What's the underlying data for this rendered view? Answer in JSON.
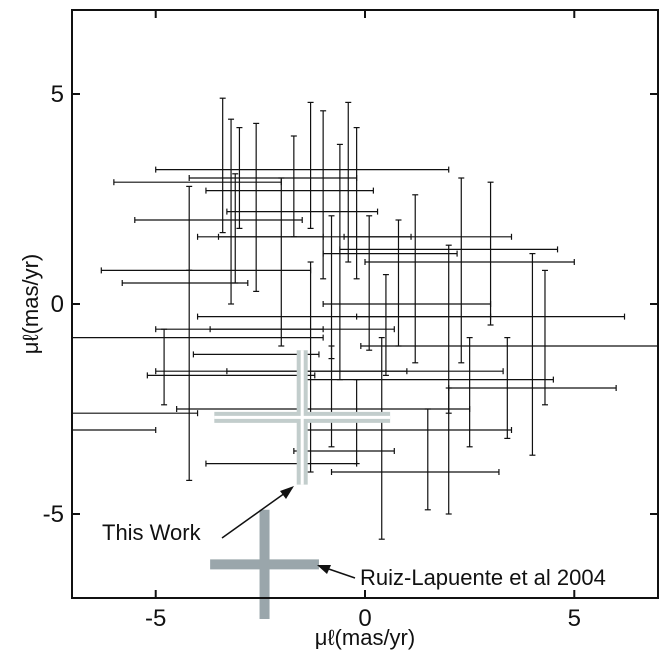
{
  "chart_data": {
    "type": "scatter",
    "title": "",
    "xlabel": "μℓ(mas/yr)",
    "ylabel": "μℓ(mas/yr)",
    "xlim": [
      -7,
      7
    ],
    "ylim": [
      -7,
      7
    ],
    "xticks": [
      -5,
      0,
      5
    ],
    "yticks": [
      -5,
      0,
      5
    ],
    "grid": false,
    "series": [
      {
        "points": [
          {
            "x": -5.5,
            "y": -2.6,
            "xerr": 1.5,
            "yerr": 0
          },
          {
            "x": -6.0,
            "y": -3.0,
            "xerr": 1.0,
            "yerr": 0
          },
          {
            "x": -4.0,
            "y": 2.9,
            "xerr": 2.0,
            "yerr": 0
          },
          {
            "x": -3.4,
            "y": 3.3,
            "xerr": 0,
            "yerr": 1.6
          },
          {
            "x": -3.0,
            "y": 3.0,
            "xerr": 0,
            "yerr": 1.2
          },
          {
            "x": -3.2,
            "y": 2.2,
            "xerr": 0,
            "yerr": 2.2
          },
          {
            "x": -2.6,
            "y": 2.3,
            "xerr": 0,
            "yerr": 2.0
          },
          {
            "x": -2.2,
            "y": 3.0,
            "xerr": 2.0,
            "yerr": 0
          },
          {
            "x": -1.7,
            "y": 2.8,
            "xerr": 0,
            "yerr": 1.2
          },
          {
            "x": -1.3,
            "y": 3.3,
            "xerr": 0,
            "yerr": 1.5
          },
          {
            "x": -1.0,
            "y": 2.6,
            "xerr": 0,
            "yerr": 2.0
          },
          {
            "x": -0.4,
            "y": 2.9,
            "xerr": 0,
            "yerr": 1.9
          },
          {
            "x": -0.2,
            "y": 2.4,
            "xerr": 0,
            "yerr": 1.8
          },
          {
            "x": -3.5,
            "y": 2.0,
            "xerr": 2.0,
            "yerr": 0
          },
          {
            "x": -1.8,
            "y": 2.7,
            "xerr": 2.0,
            "yerr": 0
          },
          {
            "x": -1.5,
            "y": 3.2,
            "xerr": 3.5,
            "yerr": 0
          },
          {
            "x": -3.1,
            "y": 1.8,
            "xerr": 0,
            "yerr": 1.3
          },
          {
            "x": -4.2,
            "y": 1.8,
            "xerr": 0,
            "yerr": 1.0
          },
          {
            "x": -4.3,
            "y": 0.5,
            "xerr": 1.5,
            "yerr": 0
          },
          {
            "x": -3.8,
            "y": 0.8,
            "xerr": 2.5,
            "yerr": 0
          },
          {
            "x": -2.5,
            "y": 1.6,
            "xerr": 1.5,
            "yerr": 0
          },
          {
            "x": -1.5,
            "y": 2.2,
            "xerr": 1.8,
            "yerr": 0
          },
          {
            "x": -2.0,
            "y": 1.0,
            "xerr": 0,
            "yerr": 2.0
          },
          {
            "x": -1.2,
            "y": 1.6,
            "xerr": 2.3,
            "yerr": 0
          },
          {
            "x": -0.6,
            "y": 1.0,
            "xerr": 0,
            "yerr": 2.8
          },
          {
            "x": -0.8,
            "y": 0.4,
            "xerr": 0,
            "yerr": 1.7
          },
          {
            "x": 0.6,
            "y": 1.2,
            "xerr": 1.6,
            "yerr": 0
          },
          {
            "x": 1.5,
            "y": 1.6,
            "xerr": 2.0,
            "yerr": 0
          },
          {
            "x": 2.0,
            "y": 1.3,
            "xerr": 2.6,
            "yerr": 0
          },
          {
            "x": 2.5,
            "y": 1.0,
            "xerr": 2.5,
            "yerr": 0
          },
          {
            "x": 3.0,
            "y": 1.2,
            "xerr": 0,
            "yerr": 1.7
          },
          {
            "x": 2.3,
            "y": 0.8,
            "xerr": 0,
            "yerr": 2.2
          },
          {
            "x": 1.2,
            "y": 0.6,
            "xerr": 0,
            "yerr": 2.0
          },
          {
            "x": 0.8,
            "y": 0.5,
            "xerr": 0,
            "yerr": 1.5
          },
          {
            "x": 0.1,
            "y": 0.5,
            "xerr": 0,
            "yerr": 1.6
          },
          {
            "x": 3.5,
            "y": -1.0,
            "xerr": 3.6,
            "yerr": 0
          },
          {
            "x": 4.0,
            "y": -1.2,
            "xerr": 0,
            "yerr": 2.4
          },
          {
            "x": 4.3,
            "y": -0.8,
            "xerr": 0,
            "yerr": 1.6
          },
          {
            "x": 3.0,
            "y": -0.3,
            "xerr": 3.2,
            "yerr": 0
          },
          {
            "x": 2.0,
            "y": -0.6,
            "xerr": 0,
            "yerr": 2.0
          },
          {
            "x": 1.0,
            "y": 0.0,
            "xerr": 2.0,
            "yerr": 0
          },
          {
            "x": 0.5,
            "y": -0.5,
            "xerr": 0,
            "yerr": 1.2
          },
          {
            "x": -0.5,
            "y": -0.3,
            "xerr": 3.5,
            "yerr": 0
          },
          {
            "x": -1.5,
            "y": -0.6,
            "xerr": 2.2,
            "yerr": 0
          },
          {
            "x": -3.0,
            "y": -0.6,
            "xerr": 2.0,
            "yerr": 0
          },
          {
            "x": -4.0,
            "y": -0.8,
            "xerr": 3.0,
            "yerr": 0
          },
          {
            "x": -4.8,
            "y": -1.5,
            "xerr": 0,
            "yerr": 0.9
          },
          {
            "x": -4.2,
            "y": -1.7,
            "xerr": 0,
            "yerr": 2.5
          },
          {
            "x": -3.2,
            "y": -1.7,
            "xerr": 2.0,
            "yerr": 0
          },
          {
            "x": -2.6,
            "y": -1.2,
            "xerr": 1.5,
            "yerr": 0
          },
          {
            "x": -2.0,
            "y": -1.6,
            "xerr": 3.0,
            "yerr": 0
          },
          {
            "x": -1.3,
            "y": -1.5,
            "xerr": 0,
            "yerr": 2.5
          },
          {
            "x": -0.8,
            "y": -2.2,
            "xerr": 0,
            "yerr": 1.2
          },
          {
            "x": 0.0,
            "y": -1.6,
            "xerr": 3.3,
            "yerr": 0
          },
          {
            "x": 1.5,
            "y": -1.8,
            "xerr": 3.0,
            "yerr": 0
          },
          {
            "x": 2.5,
            "y": -2.1,
            "xerr": 0,
            "yerr": 1.3
          },
          {
            "x": 3.4,
            "y": -2.0,
            "xerr": 0,
            "yerr": 1.2
          },
          {
            "x": 4.0,
            "y": -2.0,
            "xerr": 2.0,
            "yerr": 0
          },
          {
            "x": -1.0,
            "y": -2.5,
            "xerr": 3.5,
            "yerr": 0
          },
          {
            "x": -0.2,
            "y": -2.8,
            "xerr": 0,
            "yerr": 1.0
          },
          {
            "x": 0.4,
            "y": -3.2,
            "xerr": 0,
            "yerr": 2.4
          },
          {
            "x": 1.0,
            "y": -3.0,
            "xerr": 2.5,
            "yerr": 0
          },
          {
            "x": 1.5,
            "y": -3.7,
            "xerr": 0,
            "yerr": 1.2
          },
          {
            "x": 2.0,
            "y": -3.5,
            "xerr": 0,
            "yerr": 1.5
          },
          {
            "x": 1.2,
            "y": -4.0,
            "xerr": 2.0,
            "yerr": 0
          },
          {
            "x": -2.0,
            "y": -3.8,
            "xerr": 1.8,
            "yerr": 0
          },
          {
            "x": -0.5,
            "y": -3.5,
            "xerr": 1.2,
            "yerr": 0
          }
        ]
      }
    ],
    "markers": [
      {
        "label": "This Work",
        "x": -1.5,
        "y": -2.7,
        "xerr": 2.1,
        "yerr": 1.6,
        "color": "#c2cdcc"
      },
      {
        "label": "Ruiz-Lapuente et al 2004",
        "x": -2.4,
        "y": -6.2,
        "xerr": 1.3,
        "yerr": 1.3,
        "color": "#9aa6ab"
      }
    ]
  }
}
